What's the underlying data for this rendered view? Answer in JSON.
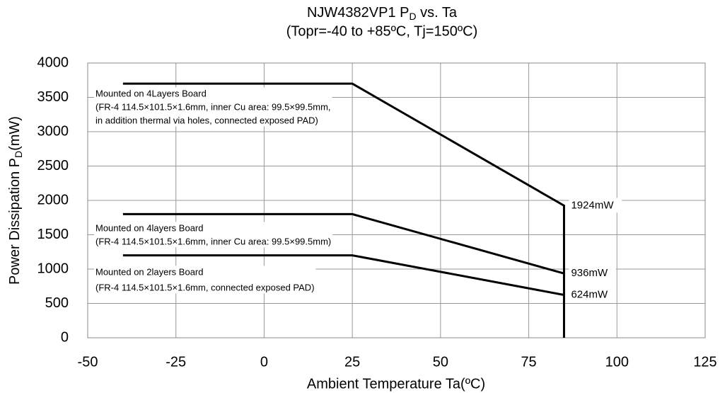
{
  "chart_data": {
    "type": "line",
    "title_parts": [
      "NJW4382VP1 P",
      "D",
      " vs. Ta"
    ],
    "subtitle": "(Topr=-40 to +85ºC, Tj=150ºC)",
    "x_label": "Ambient Temperature Ta(ºC)",
    "y_label_parts": [
      "Power Dissipation P",
      "D",
      "(mW)"
    ],
    "xlim": [
      -50,
      125
    ],
    "xticks": [
      -50,
      -25,
      0,
      25,
      50,
      75,
      100,
      125
    ],
    "ylim": [
      0,
      4000
    ],
    "yticks": [
      0,
      500,
      1000,
      1500,
      2000,
      2500,
      3000,
      3500,
      4000
    ],
    "grid": true,
    "series": [
      {
        "name": [
          "Mounted on 4Layers Board",
          "(FR-4 114.5×101.5×1.6mm, inner Cu area: 99.5×99.5mm,",
          "in addition thermal via holes, connected exposed PAD)"
        ],
        "color": "#000000",
        "x": [
          -40,
          25,
          85,
          85
        ],
        "values": [
          3700,
          3700,
          1924,
          0
        ],
        "value_labels": [
          null,
          null,
          "1924mW",
          null
        ]
      },
      {
        "name": [
          "Mounted on 4layers Board",
          "(FR-4 114.5×101.5×1.6mm, inner Cu area: 99.5×99.5mm)"
        ],
        "color": "#000000",
        "x": [
          -40,
          25,
          85
        ],
        "values": [
          1800,
          1800,
          936
        ],
        "value_labels": [
          null,
          null,
          "936mW"
        ]
      },
      {
        "name": [
          "Mounted on 2layers Board",
          "(FR-4 114.5×101.5×1.6mm, connected exposed PAD)"
        ],
        "color": "#000000",
        "x": [
          -40,
          25,
          85
        ],
        "values": [
          1200,
          1200,
          624
        ],
        "value_labels": [
          null,
          null,
          "624mW"
        ]
      }
    ]
  }
}
